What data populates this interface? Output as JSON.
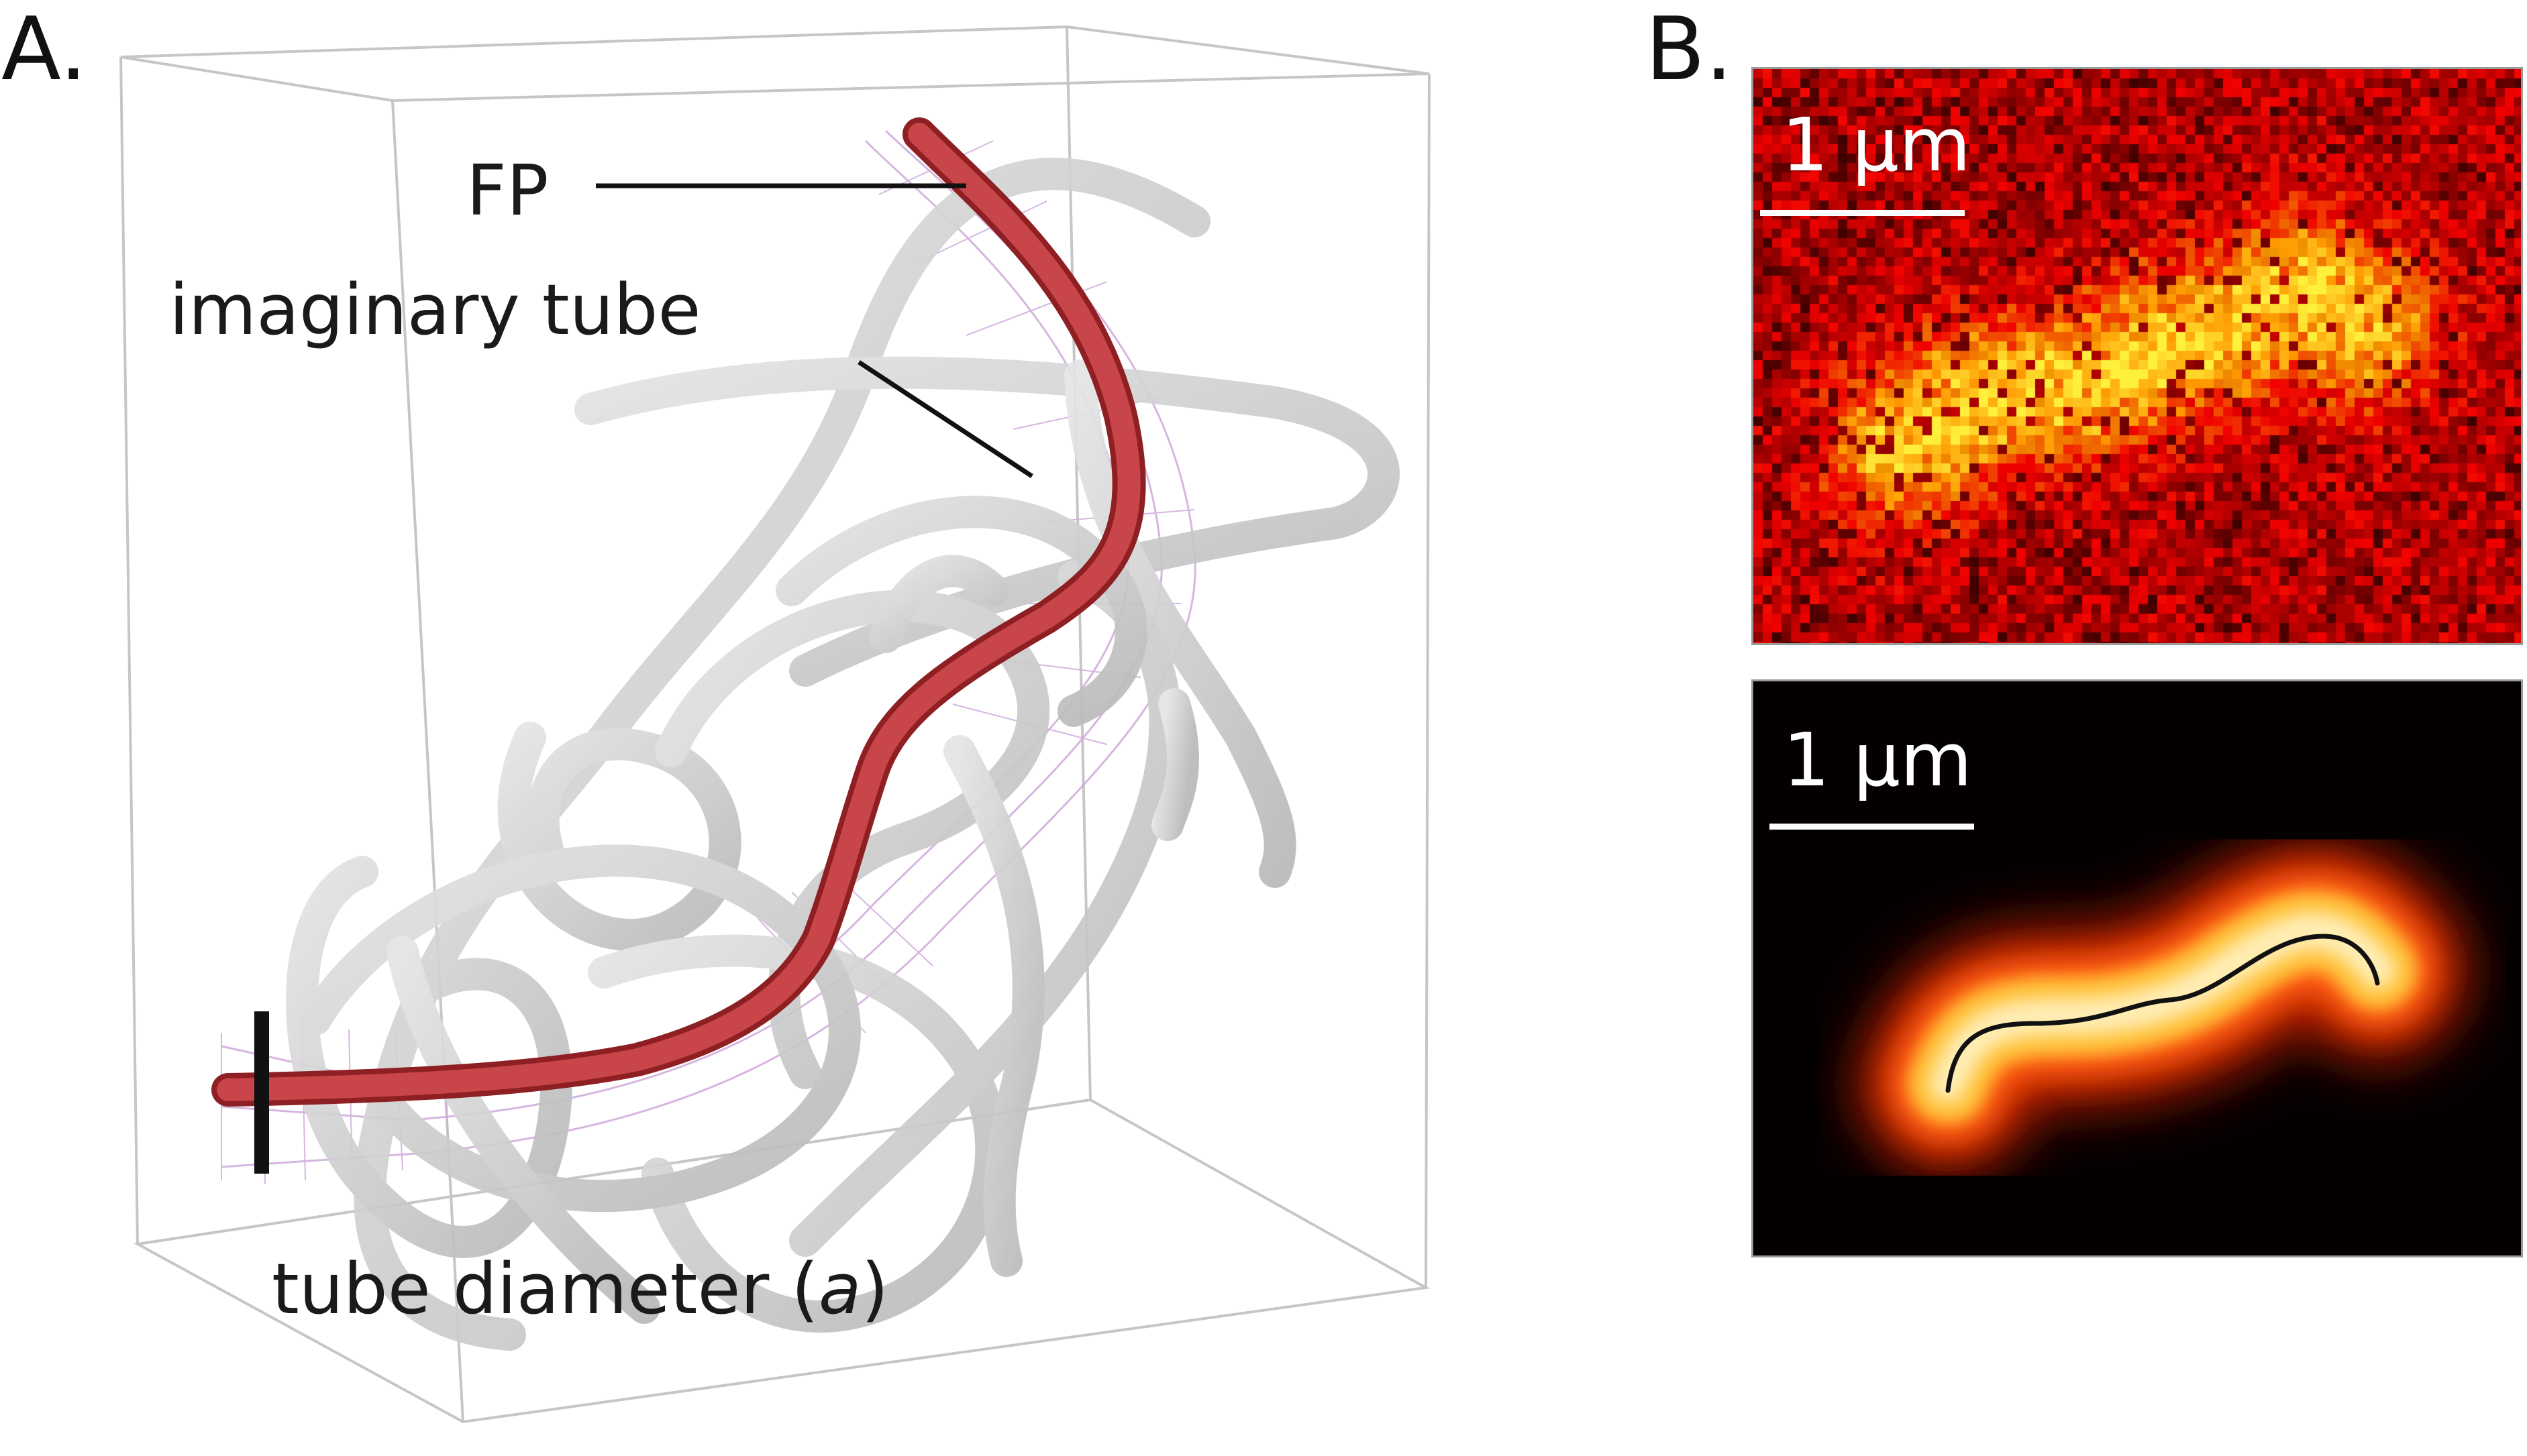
{
  "panel_a": {
    "letter": "A.",
    "labels": {
      "fp": "FP",
      "imaginary_tube": "imaginary tube",
      "tube_diameter_prefix": "tube diameter (",
      "tube_diameter_symbol": "a",
      "tube_diameter_suffix": ")"
    },
    "colors": {
      "fp_filament": "#c0393b",
      "background_filaments": "#c8c8c8",
      "tube_mesh": "#c9a6d6",
      "box_edge": "#c4c4c4"
    }
  },
  "panel_b": {
    "letter": "B.",
    "top_image": {
      "scale_label": "1 µm"
    },
    "bottom_image": {
      "scale_label": "1 µm"
    },
    "colors": {
      "hot_low": "#3a0000",
      "hot_mid": "#e0200a",
      "hot_high": "#ffd23c",
      "contour_line": "#111111"
    }
  }
}
